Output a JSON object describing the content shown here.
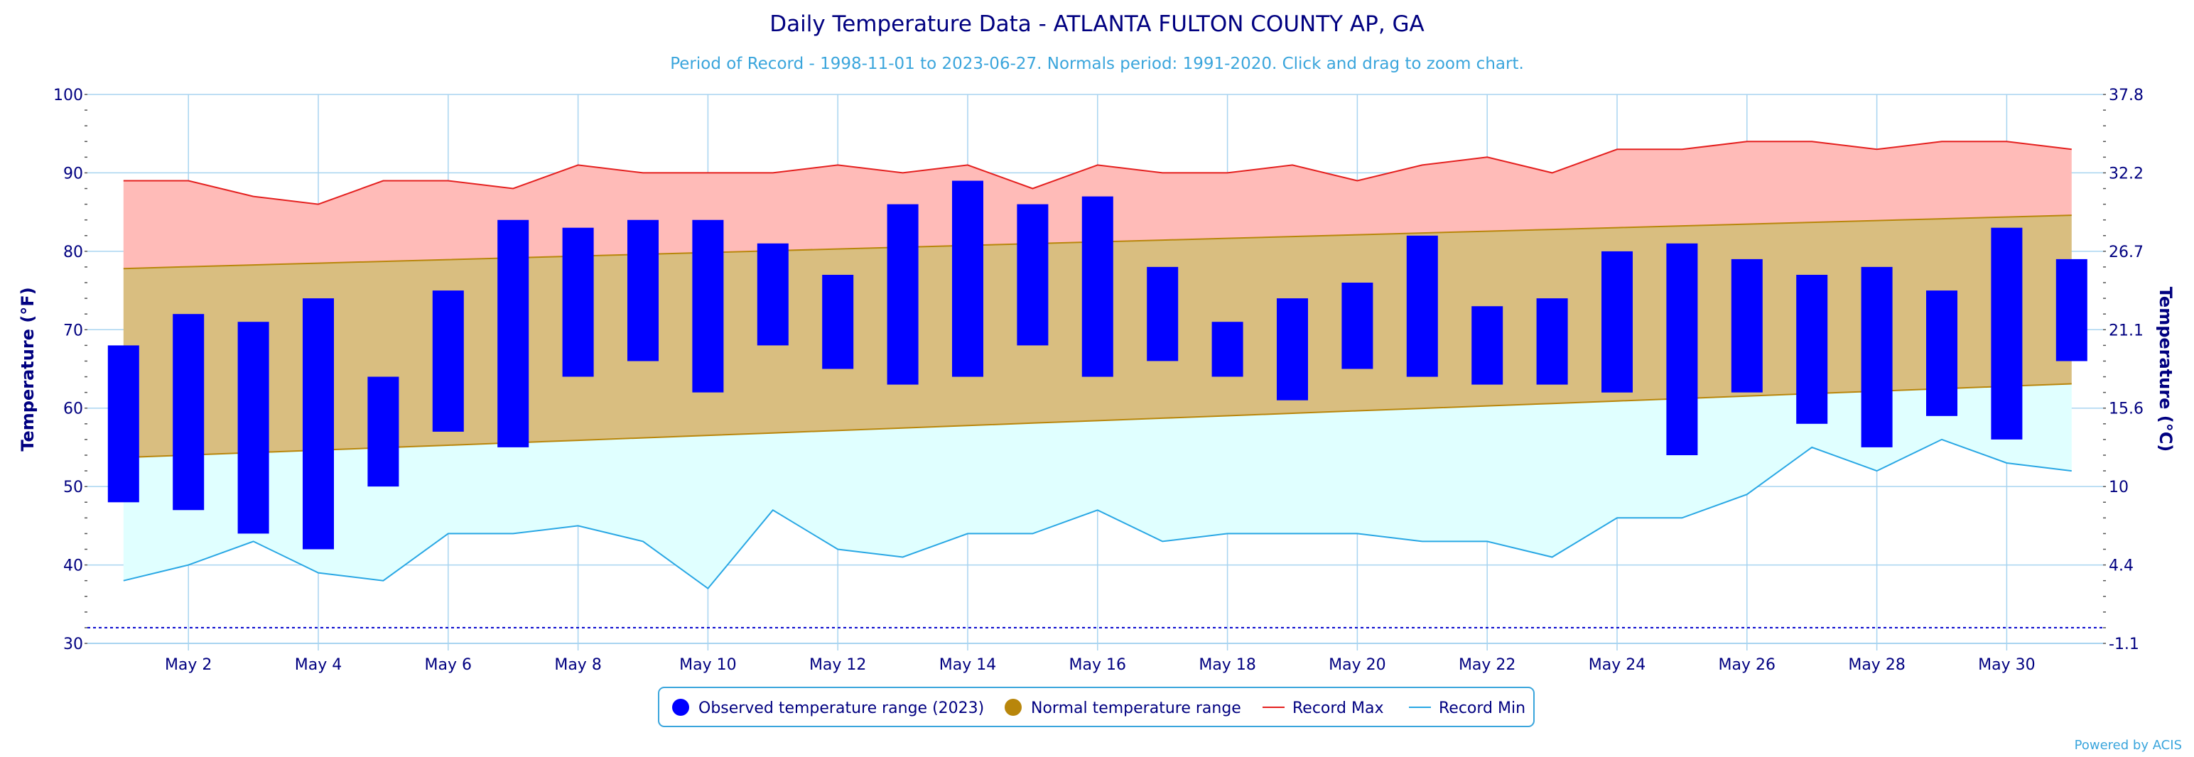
{
  "chart_data": {
    "type": "bar",
    "title": "Daily Temperature Data - ATLANTA FULTON COUNTY AP, GA",
    "subtitle": "Period of Record - 1998-11-01 to 2023-06-27. Normals period: 1991-2020. Click and drag to zoom chart.",
    "ylabel": "Temperature (°F)",
    "y2label": "Temperature (°C)",
    "ylim": [
      30,
      100
    ],
    "yticks": [
      30,
      40,
      50,
      60,
      70,
      80,
      90,
      100
    ],
    "y2ticks": [
      "-1.1",
      "4.4",
      "10",
      "15.6",
      "21.1",
      "26.7",
      "32.2",
      "37.8"
    ],
    "y2_values_f": [
      30,
      40,
      50,
      60,
      70,
      80,
      90,
      100
    ],
    "x_labels": [
      "May 2",
      "May 4",
      "May 6",
      "May 8",
      "May 10",
      "May 12",
      "May 14",
      "May 16",
      "May 18",
      "May 20",
      "May 22",
      "May 24",
      "May 26",
      "May 28",
      "May 30"
    ],
    "x_label_days": [
      2,
      4,
      6,
      8,
      10,
      12,
      14,
      16,
      18,
      20,
      22,
      24,
      26,
      28,
      30
    ],
    "days": [
      1,
      2,
      3,
      4,
      5,
      6,
      7,
      8,
      9,
      10,
      11,
      12,
      13,
      14,
      15,
      16,
      17,
      18,
      19,
      20,
      21,
      22,
      23,
      24,
      25,
      26,
      27,
      28,
      29,
      30,
      31
    ],
    "observed_low": [
      48,
      47,
      44,
      42,
      50,
      57,
      55,
      64,
      66,
      62,
      68,
      65,
      63,
      64,
      68,
      64,
      66,
      64,
      61,
      65,
      64,
      63,
      63,
      62,
      54,
      62,
      58,
      55,
      59,
      56,
      66
    ],
    "observed_high": [
      68,
      72,
      71,
      74,
      64,
      75,
      84,
      83,
      84,
      84,
      81,
      77,
      86,
      89,
      86,
      87,
      78,
      71,
      74,
      76,
      82,
      73,
      74,
      80,
      81,
      79,
      77,
      78,
      75,
      83,
      79
    ],
    "normal_low_start": 53.7,
    "normal_low_end": 63.1,
    "normal_high_start": 77.8,
    "normal_high_end": 84.6,
    "record_max": [
      89,
      89,
      87,
      86,
      89,
      89,
      88,
      91,
      90,
      90,
      90,
      91,
      90,
      91,
      88,
      91,
      90,
      90,
      91,
      89,
      91,
      92,
      90,
      93,
      93,
      94,
      94,
      93,
      94,
      94,
      93
    ],
    "record_min": [
      38,
      40,
      43,
      39,
      38,
      44,
      44,
      45,
      43,
      37,
      47,
      42,
      41,
      44,
      44,
      47,
      43,
      44,
      44,
      44,
      43,
      43,
      41,
      46,
      46,
      49,
      55,
      52,
      56,
      53,
      52
    ],
    "reference_line": 32,
    "legend": [
      {
        "label": "Observed temperature range (2023)",
        "color": "#0000ff",
        "shape": "circle"
      },
      {
        "label": "Normal temperature range",
        "color": "#b8860b",
        "shape": "circle"
      },
      {
        "label": "Record Max",
        "color": "#e4201f",
        "shape": "line"
      },
      {
        "label": "Record Min",
        "color": "#29a7e4",
        "shape": "line"
      }
    ],
    "colors": {
      "observed": "#0000ff",
      "normal_fill": "#d9be80",
      "normal_line": "#b8860b",
      "record_max_fill": "#ffbbb8",
      "record_max_line": "#e4201f",
      "record_min_fill": "#e0ffff",
      "record_min_line": "#29a7e4",
      "grid": "#a8d4f0",
      "axis_text": "#000080"
    },
    "credit": "Powered by ACIS"
  }
}
